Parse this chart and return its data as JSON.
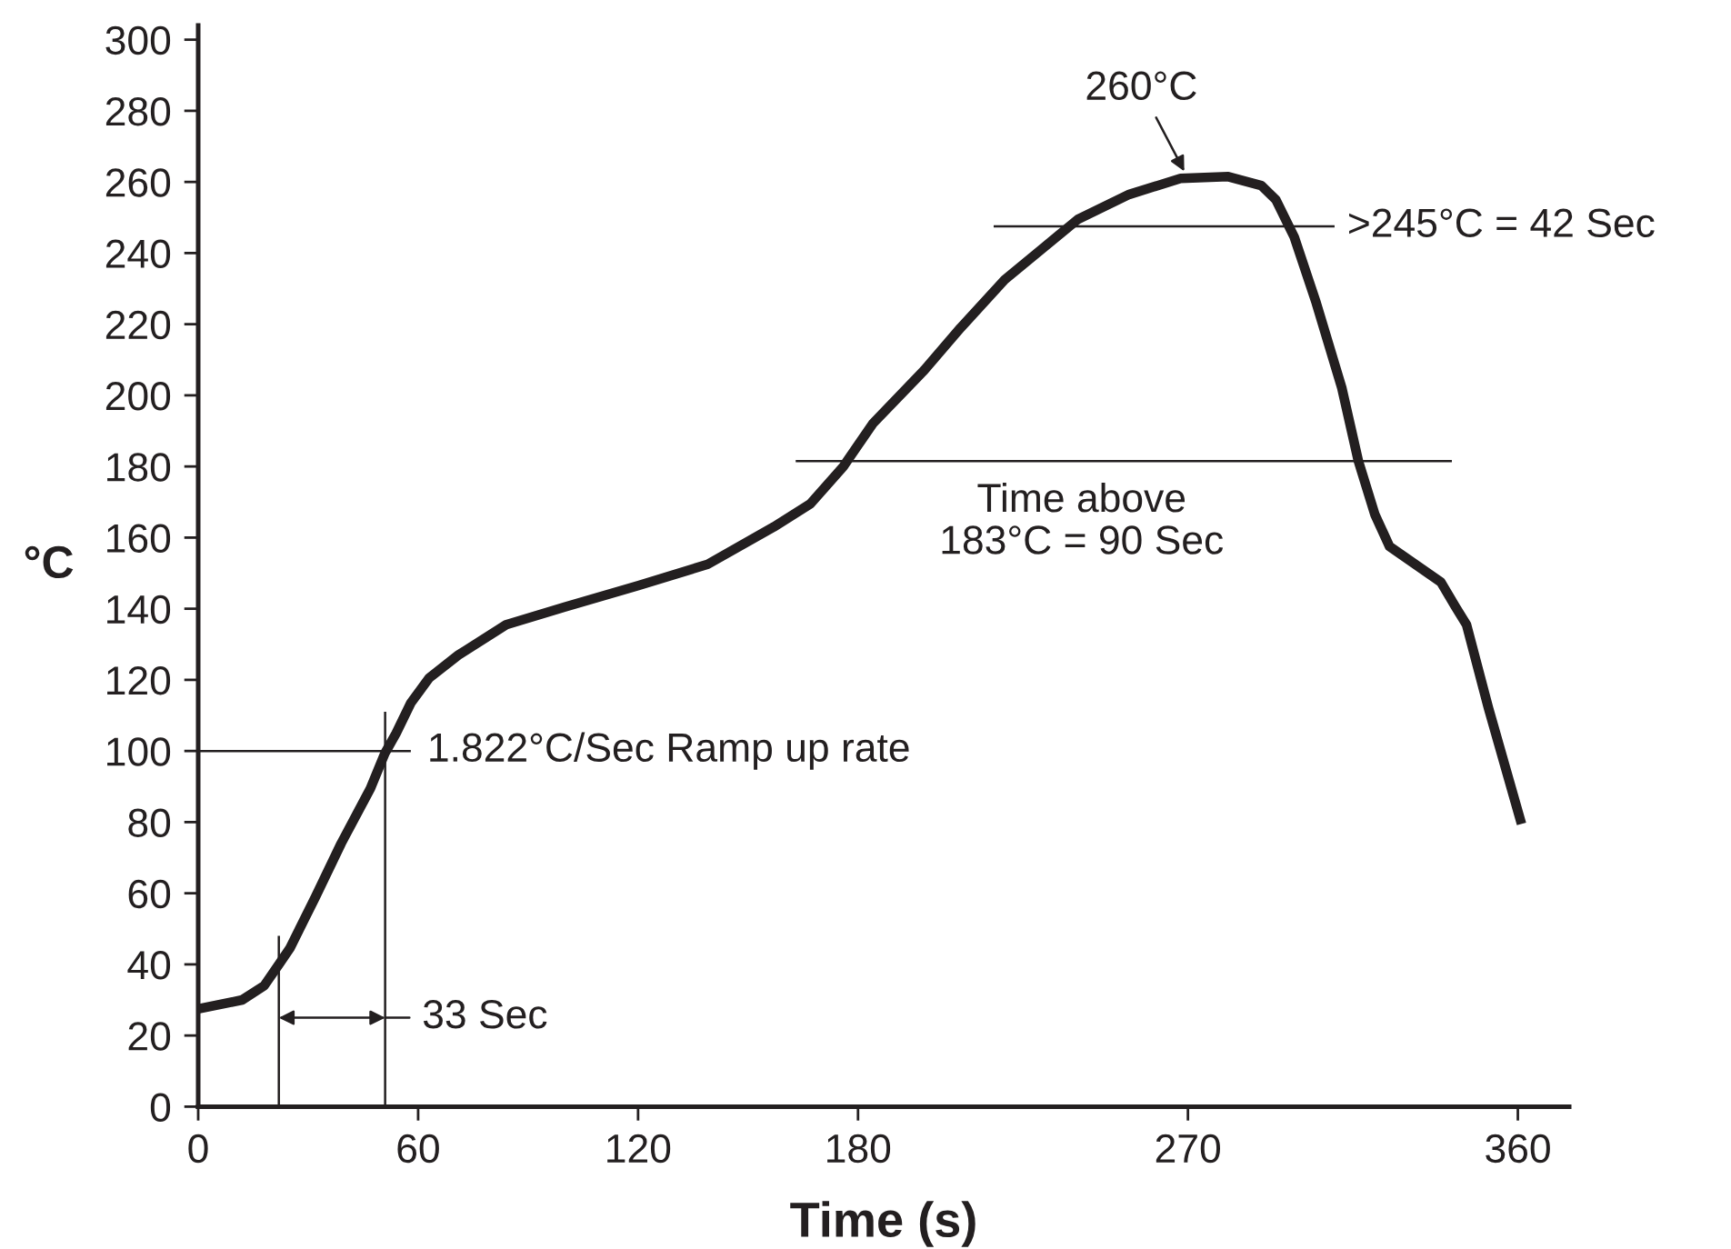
{
  "chart_data": {
    "type": "line",
    "xlabel": "Time (s)",
    "ylabel": "°C",
    "xlim": [
      0,
      374
    ],
    "xticks": [
      0,
      60,
      120,
      180,
      270,
      360
    ],
    "ylim": [
      0,
      304
    ],
    "yticks": [
      0,
      20,
      40,
      60,
      80,
      100,
      120,
      140,
      160,
      180,
      200,
      220,
      240,
      260,
      280,
      300
    ],
    "series": [
      {
        "color": "#231f20",
        "x": [
          0,
          12,
          18,
          22,
          25,
          32,
          39,
          47,
          51,
          54,
          58,
          63,
          71,
          84,
          100,
          120,
          139,
          157,
          167,
          176,
          184,
          198,
          208,
          220,
          230,
          240,
          254,
          268,
          281,
          290,
          294,
          299,
          305,
          312,
          316.5,
          321,
          325,
          339,
          343,
          346,
          352,
          361
        ],
        "values": [
          27.5,
          30,
          34,
          40,
          44.5,
          59,
          74,
          89.5,
          99.5,
          105,
          113.5,
          120.5,
          127,
          135.5,
          140.5,
          146.5,
          152.5,
          163,
          169.5,
          180,
          192,
          207,
          219,
          232.5,
          241,
          249.5,
          256.5,
          261,
          261.5,
          259,
          255,
          244.5,
          226,
          202,
          181.5,
          166.5,
          157.5,
          147.5,
          140.5,
          135.5,
          112,
          79.5
        ]
      },
      {
        "color": "#231f20",
        "x": [
          0,
          58
        ],
        "values": [
          100,
          100
        ]
      },
      {
        "color": "#231f20",
        "x": [
          22,
          22
        ],
        "values": [
          0,
          48
        ]
      },
      {
        "color": "#231f20",
        "x": [
          51,
          51
        ],
        "values": [
          0,
          111
        ]
      },
      {
        "color": "#231f20",
        "x": [
          217,
          310
        ],
        "values": [
          247.5,
          247.5
        ]
      },
      {
        "color": "#231f20",
        "x": [
          163,
          342
        ],
        "values": [
          181.5,
          181.5
        ]
      }
    ],
    "annotations": [
      {
        "text": "260°C",
        "x": 269,
        "y": 263
      },
      {
        "text": ">245°C = 42 Sec",
        "x": 310,
        "y": 247.5
      },
      {
        "text": "Time above\n183°C = 90 Sec",
        "x": 241,
        "y": 181.5
      },
      {
        "text": "1.822°C/Sec Ramp up rate",
        "x": 58,
        "y": 100
      },
      {
        "text": "33 Sec",
        "x": 51,
        "y": 25
      }
    ]
  }
}
